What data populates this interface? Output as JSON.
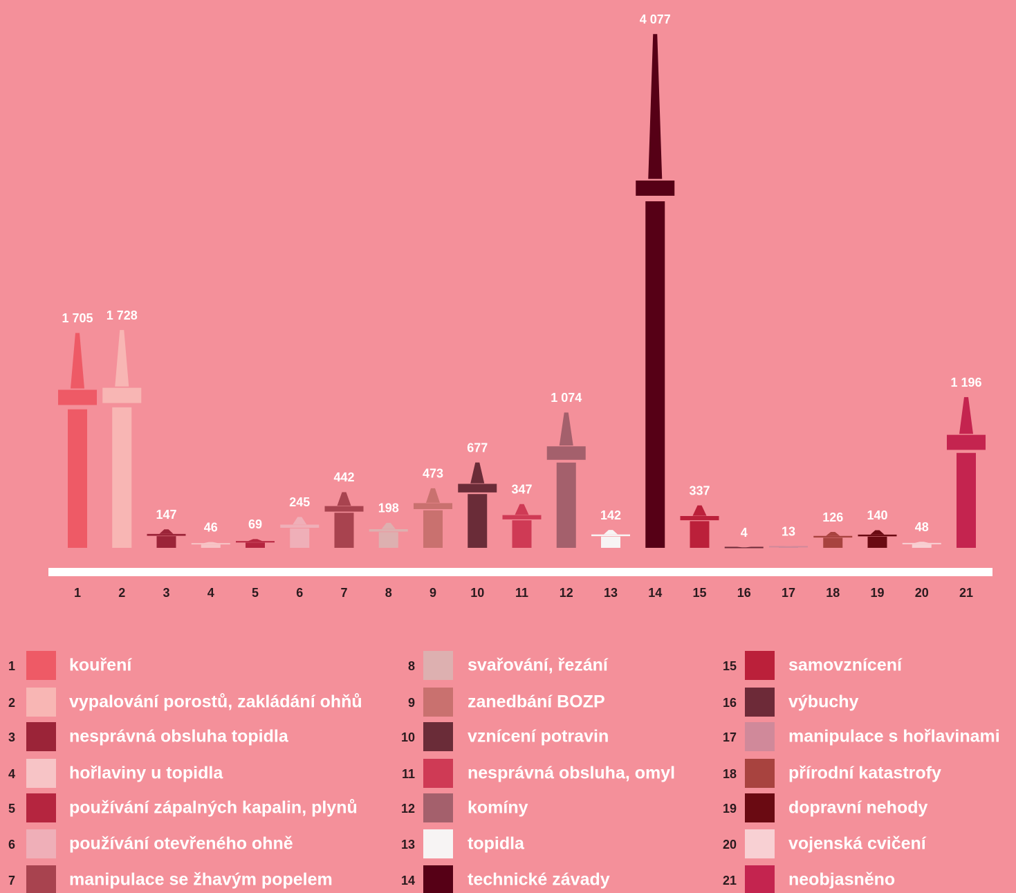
{
  "chart_data": {
    "type": "tower-bar",
    "categories": [
      "1",
      "2",
      "3",
      "4",
      "5",
      "6",
      "7",
      "8",
      "9",
      "10",
      "11",
      "12",
      "13",
      "14",
      "15",
      "16",
      "17",
      "18",
      "19",
      "20",
      "21"
    ],
    "values": [
      1705,
      1728,
      147,
      46,
      69,
      245,
      442,
      198,
      473,
      677,
      347,
      1074,
      142,
      4077,
      337,
      4,
      13,
      126,
      140,
      48,
      1196
    ],
    "value_labels": [
      "1 705",
      "1 728",
      "147",
      "46",
      "69",
      "245",
      "442",
      "198",
      "473",
      "677",
      "347",
      "1 074",
      "142",
      "4 077",
      "337",
      "4",
      "13",
      "126",
      "140",
      "48",
      "1 196"
    ],
    "names": [
      "kouření",
      "vypalování porostů, zakládání ohňů",
      "nesprávná obsluha topidla",
      "hořlaviny u topidla",
      "používání zápalných kapalin, plynů",
      "používání otevřeného ohně",
      "manipulace se žhavým popelem",
      "svařování, řezání",
      "zanedbání BOZP",
      "vznícení potravin",
      "nesprávná obsluha, omyl",
      "komíny",
      "topidla",
      "technické závady",
      "samovznícení",
      "výbuchy",
      "manipulace s hořlavinami",
      "přírodní katastrofy",
      "dopravní nehody",
      "vojenská cvičení",
      "neobjasněno"
    ],
    "colors": [
      "#ee5a66",
      "#f8b6b4",
      "#9b2438",
      "#f7c4c6",
      "#b5253f",
      "#efafb8",
      "#a8434f",
      "#ddb0b0",
      "#c9716f",
      "#6a2c38",
      "#cf3a55",
      "#a4606c",
      "#f7f4f4",
      "#560016",
      "#bb203a",
      "#6d2a38",
      "#d0899a",
      "#a8433f",
      "#6a0a12",
      "#f8d0d3",
      "#c4244f"
    ],
    "ylim": [
      0,
      4100
    ]
  }
}
